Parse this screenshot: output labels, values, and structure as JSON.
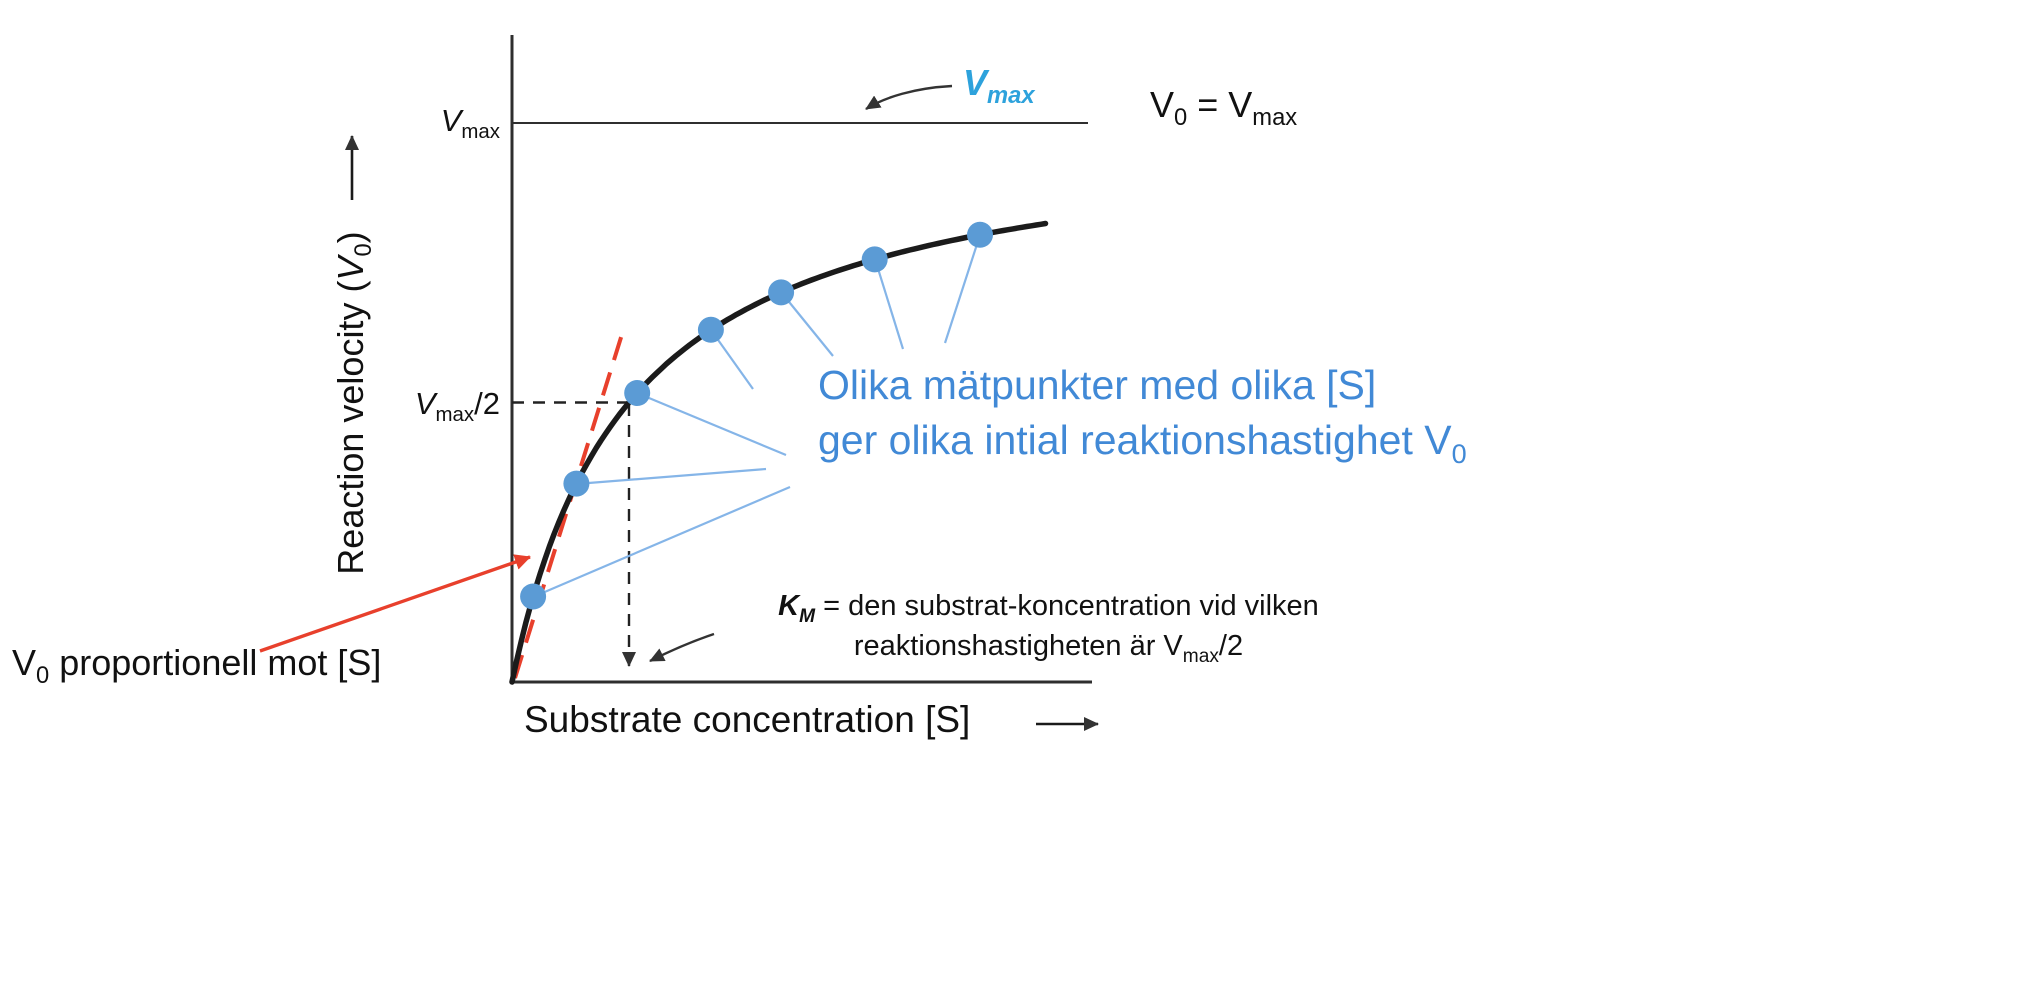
{
  "colors": {
    "axis": "#2f2f2f",
    "curve": "#1b1b1b",
    "point_blue": "#5b9bd5",
    "connector_blue": "#85b5e8",
    "annotation_blue": "#4189d6",
    "vmax_blue": "#2da2dc",
    "red": "#e8402c",
    "guide": "#222222",
    "arrow_dark": "#333333",
    "text": "#111111"
  },
  "axes": {
    "y_label_pre": "Reaction velocity (",
    "y_label_var": "V",
    "y_label_var_sub": "0",
    "y_label_close": ")",
    "x_label": "Substrate concentration [S]"
  },
  "ticks": {
    "vmax_base": "V",
    "vmax_sub": "max",
    "vmax_half_base": "V",
    "vmax_half_sub": "max",
    "vmax_half_suffix": "/2"
  },
  "annotations": {
    "vmax_curve_base": "V",
    "vmax_curve_sub": "max",
    "v0_eq_vmax_pre": "V",
    "v0_eq_vmax_pre_sub": "0",
    "v0_eq_vmax_mid": " = V",
    "v0_eq_vmax_sub": "max",
    "blue_line1": "Olika mätpunkter med olika [S]",
    "blue_line2": "ger olika intial reaktionshastighet ",
    "blue_line2_var": "V",
    "blue_line2_sub": "0",
    "km_var": "K",
    "km_var_sub": "M",
    "km_line1_rest": " = den substrat-koncentration vid vilken",
    "km_line2_pre": "reaktionshastigheten är ",
    "km_line2_var": "V",
    "km_line2_var_sub": "max",
    "km_line2_suffix": "/2",
    "v0_prop_var": "V",
    "v0_prop_var_sub": "0",
    "v0_prop_rest": " proportionell mot [S]"
  },
  "chart_data": {
    "type": "scatter",
    "title": "Michaelis-Menten saturation curve (annotated, axes unnumbered)",
    "xlabel": "Substrate concentration [S]",
    "ylabel": "Reaction velocity (V0)",
    "x_scale": "estimated in multiples of KM",
    "y_scale": "estimated as fraction of Vmax",
    "curve": "hyperbolic saturation: V0 = Vmax*[S]/(KM+[S])",
    "points": [
      {
        "s_over_km": 0.18,
        "v0_over_vmax": 0.153
      },
      {
        "s_over_km": 0.55,
        "v0_over_vmax": 0.355
      },
      {
        "s_over_km": 1.07,
        "v0_over_vmax": 0.517
      },
      {
        "s_over_km": 1.7,
        "v0_over_vmax": 0.63
      },
      {
        "s_over_km": 2.3,
        "v0_over_vmax": 0.697
      },
      {
        "s_over_km": 3.1,
        "v0_over_vmax": 0.756
      },
      {
        "s_over_km": 4.0,
        "v0_over_vmax": 0.8
      }
    ],
    "reference_lines": [
      {
        "label": "Vmax",
        "axis": "y",
        "value": 1.0,
        "style": "solid"
      },
      {
        "label": "Vmax/2",
        "axis": "y",
        "value": 0.5,
        "style": "dashed"
      },
      {
        "label": "KM",
        "axis": "x",
        "value": 1.0,
        "style": "dashed"
      }
    ],
    "tangent_line": {
      "label": "V0 proportionell mot [S]",
      "style": "red-dashed",
      "through_origin": true
    },
    "legend": "none",
    "grid": false
  }
}
